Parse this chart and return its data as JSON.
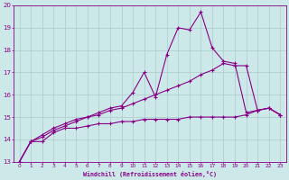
{
  "xlabel": "Windchill (Refroidissement éolien,°C)",
  "background_color": "#cce8e8",
  "line_color": "#880088",
  "grid_color": "#aacccc",
  "xlim": [
    -0.5,
    23.5
  ],
  "ylim": [
    13,
    20
  ],
  "xticks": [
    0,
    1,
    2,
    3,
    4,
    5,
    6,
    7,
    8,
    9,
    10,
    11,
    12,
    13,
    14,
    15,
    16,
    17,
    18,
    19,
    20,
    21,
    22,
    23
  ],
  "yticks": [
    13,
    14,
    15,
    16,
    17,
    18,
    19,
    20
  ],
  "series1_x": [
    0,
    1,
    2,
    3,
    4,
    5,
    6,
    7,
    8,
    9,
    10,
    11,
    12,
    13,
    14,
    15,
    16,
    17,
    18,
    19,
    20,
    21,
    22,
    23
  ],
  "series1_y": [
    13.0,
    13.9,
    13.9,
    14.3,
    14.5,
    14.5,
    14.6,
    14.7,
    14.7,
    14.8,
    14.8,
    14.9,
    14.9,
    14.9,
    14.9,
    15.0,
    15.0,
    15.0,
    15.0,
    15.0,
    15.1,
    15.3,
    15.4,
    15.1
  ],
  "series2_x": [
    0,
    1,
    2,
    3,
    4,
    5,
    6,
    7,
    8,
    9,
    10,
    11,
    12,
    13,
    14,
    15,
    16,
    17,
    18,
    19,
    20,
    21,
    22,
    23
  ],
  "series2_y": [
    13.0,
    13.9,
    14.1,
    14.4,
    14.6,
    14.8,
    15.0,
    15.1,
    15.3,
    15.4,
    15.6,
    15.8,
    16.0,
    16.2,
    16.4,
    16.6,
    16.9,
    17.1,
    17.4,
    17.3,
    17.3,
    15.3,
    15.4,
    15.1
  ],
  "series3_x": [
    0,
    1,
    2,
    3,
    4,
    5,
    6,
    7,
    8,
    9,
    10,
    11,
    12,
    13,
    14,
    15,
    16,
    17,
    18,
    19,
    20,
    21,
    22,
    23
  ],
  "series3_y": [
    13.0,
    13.9,
    14.2,
    14.5,
    14.7,
    14.9,
    15.0,
    15.2,
    15.4,
    15.5,
    16.1,
    17.0,
    15.9,
    17.8,
    19.0,
    18.9,
    19.7,
    18.1,
    17.5,
    17.4,
    15.2,
    15.3,
    15.4,
    15.1
  ]
}
